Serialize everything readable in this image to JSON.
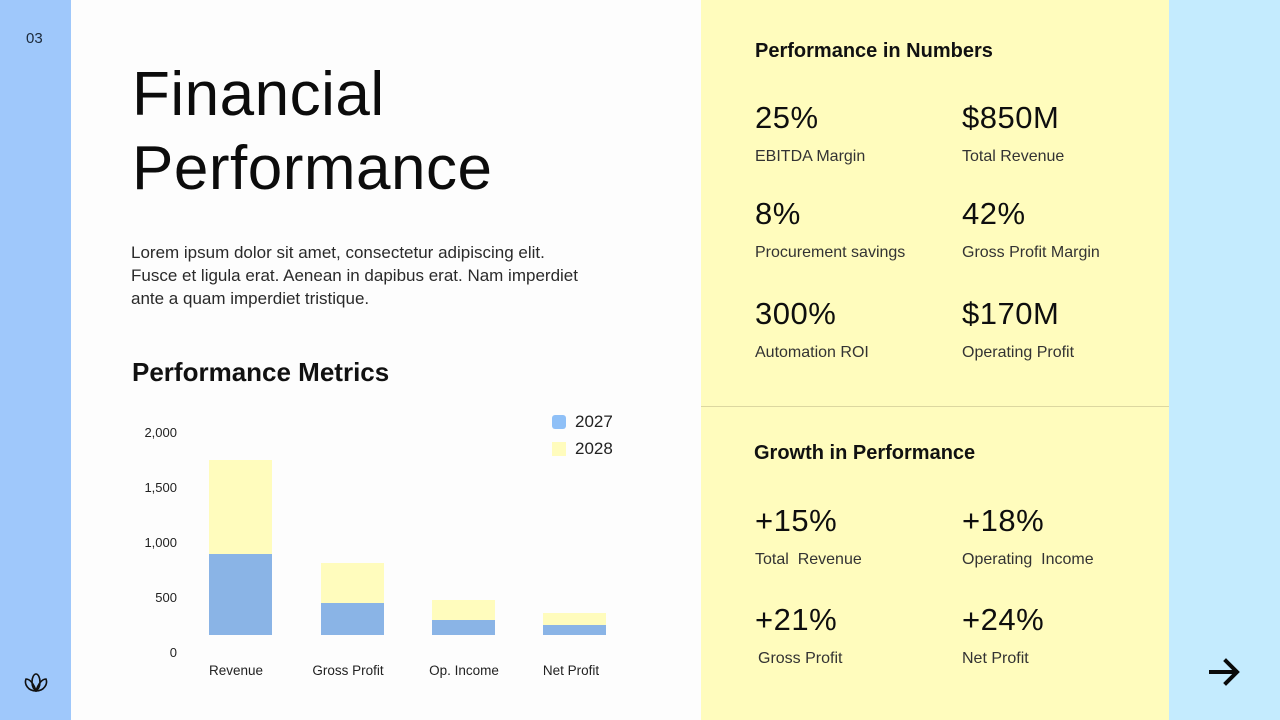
{
  "slide": {
    "page_number": "03",
    "title_line1": "Financial",
    "title_line2": "Performance",
    "body": "Lorem ipsum dolor sit amet, consectetur adipiscing elit. Fusce et ligula erat. Aenean in dapibus erat. Nam imperdiet ante a quam imperdiet tristique.",
    "metrics_title": "Performance Metrics",
    "logo_icon": "lotus-icon",
    "next_icon": "arrow-right-icon"
  },
  "colors": {
    "left_strip": "#9fc8fb",
    "right_panel": "#fffcbd",
    "far_right": "#c4ebfe",
    "series_2027": "#8ab4e6",
    "series_2028": "#fffcbd"
  },
  "chart_data": {
    "type": "bar",
    "stacked": true,
    "title": "Performance Metrics",
    "xlabel": "",
    "ylabel": "",
    "ylim": [
      0,
      2000
    ],
    "yticks": [
      "0",
      "500",
      "1,000",
      "1,500",
      "2,000"
    ],
    "categories": [
      "Revenue",
      "Gross Profit",
      "Op. Income",
      "Net Profit"
    ],
    "series": [
      {
        "name": "2027",
        "color": "#8ab4e6",
        "values": [
          730,
          290,
          135,
          90
        ]
      },
      {
        "name": "2028",
        "color": "#fffcbd",
        "values": [
          845,
          360,
          180,
          110
        ]
      }
    ],
    "legend_position": "top-right",
    "grid": false
  },
  "numbers": {
    "title": "Performance in Numbers",
    "items": [
      {
        "value": "25%",
        "label": "EBITDA Margin"
      },
      {
        "value": "$850M",
        "label": "Total Revenue"
      },
      {
        "value": "8%",
        "label": "Procurement savings"
      },
      {
        "value": "42%",
        "label": "Gross Profit Margin"
      },
      {
        "value": "300%",
        "label": "Automation ROI"
      },
      {
        "value": "$170M",
        "label": "Operating Profit"
      }
    ]
  },
  "growth": {
    "title": "Growth in Performance",
    "items": [
      {
        "value": "+15%",
        "label": "Total  Revenue"
      },
      {
        "value": "+18%",
        "label": "Operating  Income"
      },
      {
        "value": "+21%",
        "label": "Gross Profit"
      },
      {
        "value": "+24%",
        "label": "Net Profit"
      }
    ]
  }
}
